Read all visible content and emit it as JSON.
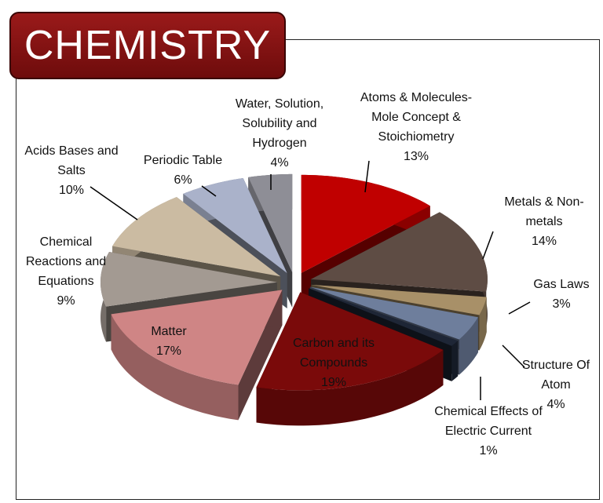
{
  "title": "CHEMISTRY",
  "chart_data": {
    "type": "pie",
    "title": "CHEMISTRY",
    "style": "3d-exploded",
    "slices": [
      {
        "label": "Atoms & Molecules- Mole Concept & Stoichiometry",
        "pct": "13%",
        "value": 13,
        "color": "#c00000"
      },
      {
        "label": "Metals & Non-metals",
        "pct": "14%",
        "value": 14,
        "color": "#5e4c44"
      },
      {
        "label": "Gas Laws",
        "pct": "3%",
        "value": 3,
        "color": "#a89068"
      },
      {
        "label": "Structure Of Atom",
        "pct": "4%",
        "value": 4,
        "color": "#6e7e9c"
      },
      {
        "label": "Chemical Effects of Electric Current",
        "pct": "1%",
        "value": 1,
        "color": "#1e2636"
      },
      {
        "label": "Carbon and its Compounds",
        "pct": "19%",
        "value": 19,
        "color": "#7a0a0a"
      },
      {
        "label": "Matter",
        "pct": "17%",
        "value": 17,
        "color": "#cf8585"
      },
      {
        "label": "Chemical Reactions and Equations",
        "pct": "9%",
        "value": 9,
        "color": "#a39a92"
      },
      {
        "label": "Acids Bases and Salts",
        "pct": "10%",
        "value": 10,
        "color": "#cbbba2"
      },
      {
        "label": "Periodic Table",
        "pct": "6%",
        "value": 6,
        "color": "#aab2ca"
      },
      {
        "label": "Water, Solution, Solubility and Hydrogen",
        "pct": "4%",
        "value": 4,
        "color": "#8e8e96"
      }
    ]
  }
}
